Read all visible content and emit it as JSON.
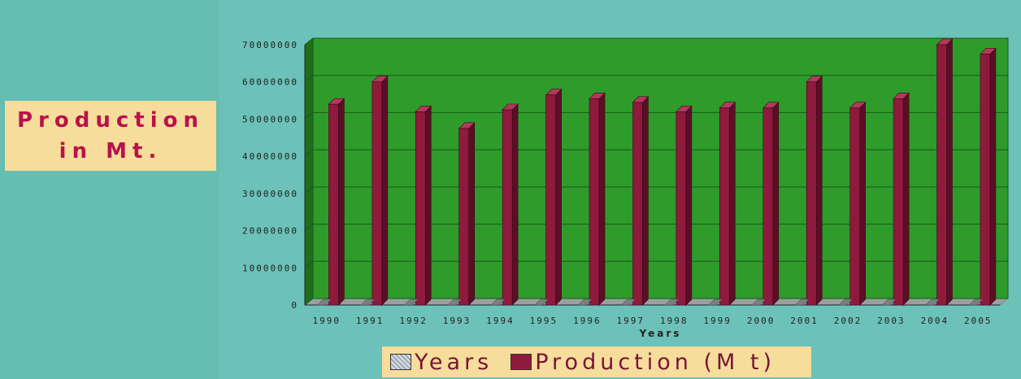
{
  "chart_data": {
    "type": "bar",
    "title": "",
    "ylabel_line1": "Production",
    "ylabel_line2": "in Mt.",
    "xlabel": "Years",
    "categories": [
      "1990",
      "1991",
      "1992",
      "1993",
      "1994",
      "1995",
      "1996",
      "1997",
      "1998",
      "1999",
      "2000",
      "2001",
      "2002",
      "2003",
      "2004",
      "2005"
    ],
    "series": [
      {
        "name": "Years",
        "values": [
          0,
          0,
          0,
          0,
          0,
          0,
          0,
          0,
          0,
          0,
          0,
          0,
          0,
          0,
          0,
          0
        ]
      },
      {
        "name": "Production (M t)",
        "values": [
          54000000,
          60000000,
          52000000,
          47500000,
          52500000,
          56500000,
          55500000,
          54500000,
          52000000,
          53000000,
          53000000,
          60000000,
          53000000,
          55500000,
          70000000,
          67500000
        ]
      }
    ],
    "ylim": [
      0,
      70000000
    ],
    "yticks": [
      "0",
      "10000000",
      "20000000",
      "30000000",
      "40000000",
      "50000000",
      "60000000",
      "70000000"
    ],
    "grid": true,
    "legend_position": "bottom",
    "colors": {
      "plot_bg": "#2e9b2a",
      "bar": "#8e1a3d",
      "bar_side": "#5a0f26",
      "bar_top": "#b23a5e"
    }
  },
  "legend": {
    "years_label": "Years",
    "production_label": "Production (M t)"
  }
}
